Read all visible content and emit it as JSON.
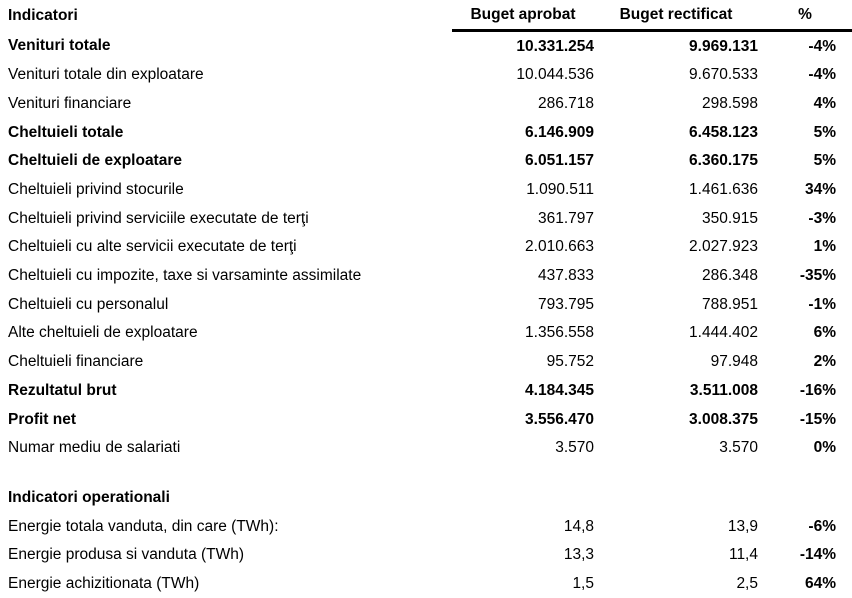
{
  "table": {
    "columns": [
      "Indicatori",
      "Buget aprobat",
      "Buget rectificat",
      "%"
    ],
    "rows": [
      {
        "style": "bold",
        "label": "Venituri totale",
        "aprobat": "10.331.254",
        "rectificat": "9.969.131",
        "pct": "-4%"
      },
      {
        "style": "normal",
        "label": "Venituri totale din exploatare",
        "aprobat": "10.044.536",
        "rectificat": "9.670.533",
        "pct": "-4%"
      },
      {
        "style": "normal",
        "label": "Venituri financiare",
        "aprobat": "286.718",
        "rectificat": "298.598",
        "pct": "4%"
      },
      {
        "style": "bold",
        "label": "Cheltuieli totale",
        "aprobat": "6.146.909",
        "rectificat": "6.458.123",
        "pct": "5%"
      },
      {
        "style": "bold",
        "label": "Cheltuieli de exploatare",
        "aprobat": "6.051.157",
        "rectificat": "6.360.175",
        "pct": "5%"
      },
      {
        "style": "normal",
        "label": "Cheltuieli privind stocurile",
        "aprobat": "1.090.511",
        "rectificat": "1.461.636",
        "pct": "34%"
      },
      {
        "style": "normal",
        "label": "Cheltuieli privind serviciile executate de terţi",
        "aprobat": "361.797",
        "rectificat": "350.915",
        "pct": "-3%"
      },
      {
        "style": "normal",
        "label": "Cheltuieli cu alte servicii executate de terţi",
        "aprobat": "2.010.663",
        "rectificat": "2.027.923",
        "pct": "1%"
      },
      {
        "style": "normal",
        "label": "Cheltuieli cu impozite, taxe si varsaminte assimilate",
        "aprobat": "437.833",
        "rectificat": "286.348",
        "pct": "-35%"
      },
      {
        "style": "normal",
        "label": "Cheltuieli cu personalul",
        "aprobat": "793.795",
        "rectificat": "788.951",
        "pct": "-1%"
      },
      {
        "style": "normal",
        "label": "Alte cheltuieli de exploatare",
        "aprobat": "1.356.558",
        "rectificat": "1.444.402",
        "pct": "6%"
      },
      {
        "style": "normal",
        "label": "Cheltuieli financiare",
        "aprobat": "95.752",
        "rectificat": "97.948",
        "pct": "2%"
      },
      {
        "style": "bold",
        "label": "Rezultatul brut",
        "aprobat": "4.184.345",
        "rectificat": "3.511.008",
        "pct": "-16%"
      },
      {
        "style": "bold",
        "label": "Profit net",
        "aprobat": "3.556.470",
        "rectificat": "3.008.375",
        "pct": "-15%"
      },
      {
        "style": "normal",
        "label": "Numar mediu de salariati",
        "aprobat": "3.570",
        "rectificat": "3.570",
        "pct": "0%"
      },
      {
        "style": "spacer",
        "label": "",
        "aprobat": "",
        "rectificat": "",
        "pct": ""
      },
      {
        "style": "section",
        "label": "Indicatori operationali",
        "aprobat": "",
        "rectificat": "",
        "pct": ""
      },
      {
        "style": "normal",
        "label": "Energie totala vanduta, din care (TWh):",
        "aprobat": "14,8",
        "rectificat": "13,9",
        "pct": "-6%"
      },
      {
        "style": "normal",
        "label": "Energie produsa si vanduta (TWh)",
        "aprobat": "13,3",
        "rectificat": "11,4",
        "pct": "-14%"
      },
      {
        "style": "normal",
        "label": "Energie achizitionata (TWh)",
        "aprobat": "1,5",
        "rectificat": "2,5",
        "pct": "64%"
      }
    ],
    "text_color": "#000000",
    "background_color": "#ffffff",
    "header_rule_color": "#000000"
  }
}
